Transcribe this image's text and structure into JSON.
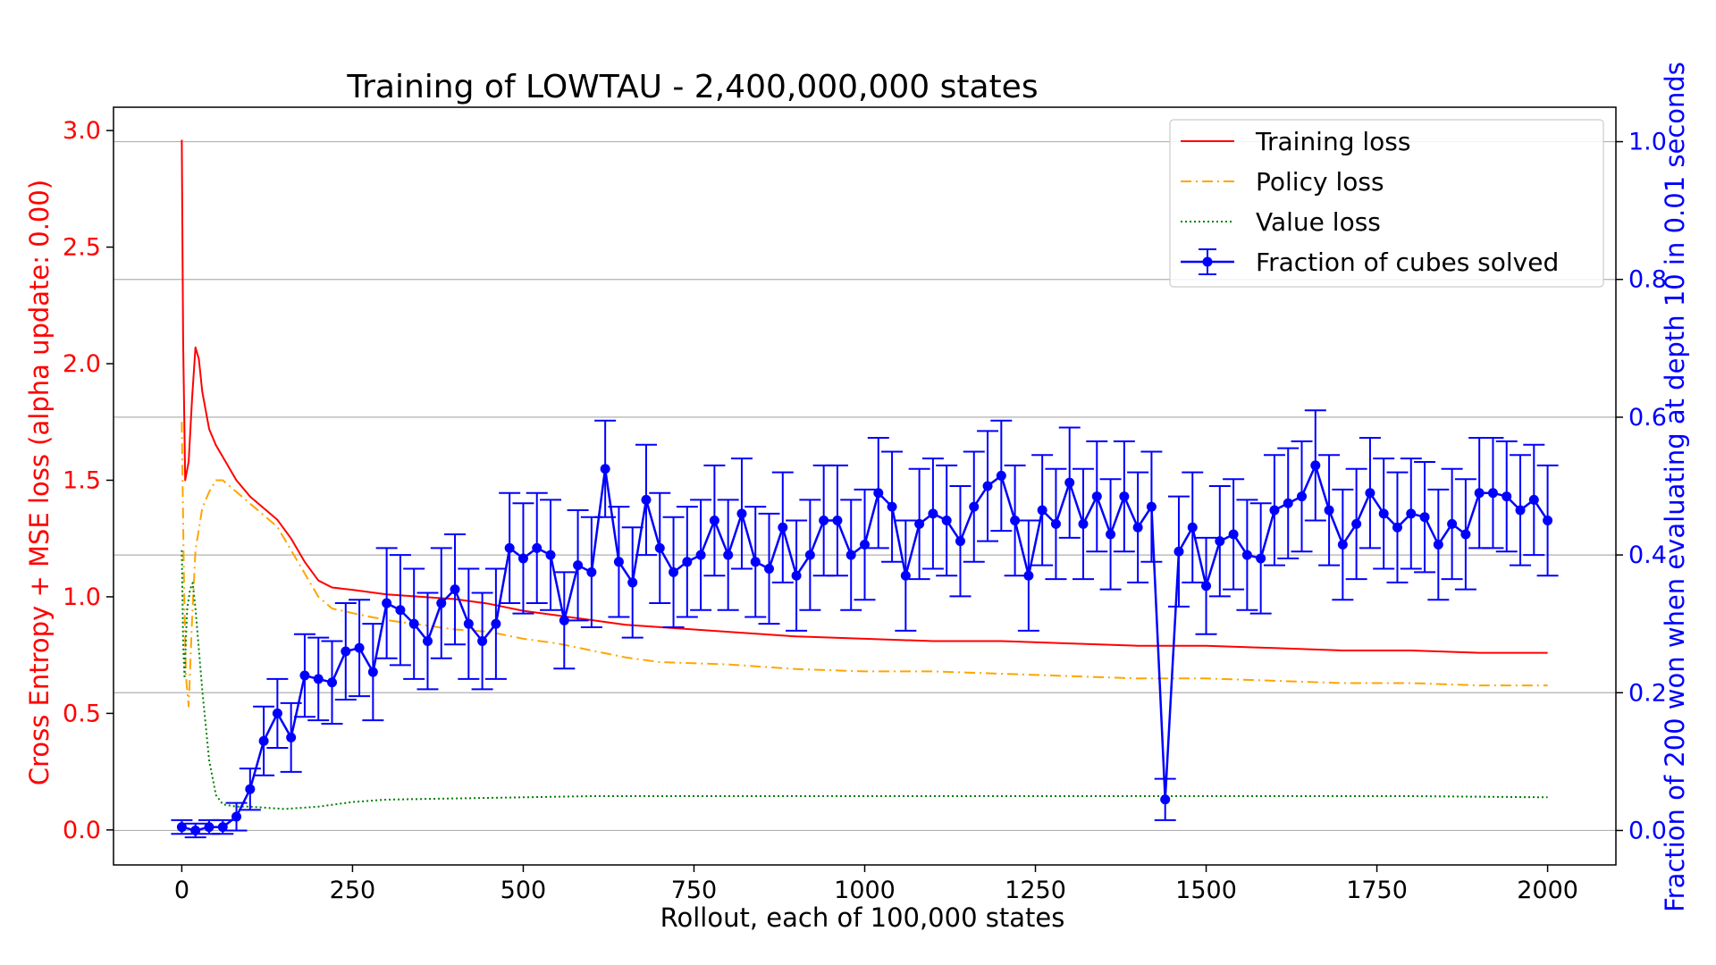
{
  "chart_data": {
    "type": "line",
    "title": "Training of LOWTAU - 2,400,000,000 states",
    "xlabel": "Rollout, each of 100,000 states",
    "ylabel_left": "Cross Entropy + MSE loss (alpha update: 0.00)",
    "ylabel_right": "Fraction of 200 won when evaluating at depth 10 in 0.01 seconds",
    "xlim": [
      -100,
      2100
    ],
    "ylim_left": [
      -0.15,
      3.1
    ],
    "ylim_right": [
      -0.05,
      1.05
    ],
    "xticks": [
      0,
      250,
      500,
      750,
      1000,
      1250,
      1500,
      1750,
      2000
    ],
    "xtick_labels": [
      "0",
      "250",
      "500",
      "750",
      "1000",
      "1250",
      "1500",
      "1750",
      "2000"
    ],
    "yticks_left": [
      0.0,
      0.5,
      1.0,
      1.5,
      2.0,
      2.5,
      3.0
    ],
    "ytick_labels_left": [
      "0.0",
      "0.5",
      "1.0",
      "1.5",
      "2.0",
      "2.5",
      "3.0"
    ],
    "yticks_right": [
      0.0,
      0.2,
      0.4,
      0.6,
      0.8,
      1.0
    ],
    "ytick_labels_right": [
      "0.0",
      "0.2",
      "0.4",
      "0.6",
      "0.8",
      "1.0"
    ],
    "grid": "horizontal, right axis",
    "legend_position": "top-right",
    "colors": {
      "training": "#ff0000",
      "policy": "#ffa500",
      "value": "#008000",
      "solved": "#0000ff",
      "left_axis": "#ff0000",
      "right_axis": "#0000ff",
      "grid": "#b0b0b0",
      "text": "#000000"
    },
    "series": [
      {
        "name": "Training loss",
        "axis": "left",
        "style": "solid",
        "x": [
          0,
          2,
          5,
          10,
          15,
          20,
          25,
          30,
          40,
          50,
          60,
          80,
          100,
          120,
          140,
          160,
          180,
          200,
          220,
          250,
          300,
          350,
          400,
          450,
          500,
          550,
          600,
          650,
          700,
          800,
          900,
          1000,
          1100,
          1200,
          1300,
          1400,
          1500,
          1600,
          1700,
          1800,
          1900,
          2000
        ],
        "y": [
          2.96,
          2.1,
          1.5,
          1.58,
          1.85,
          2.07,
          2.02,
          1.88,
          1.72,
          1.65,
          1.6,
          1.5,
          1.43,
          1.38,
          1.33,
          1.25,
          1.15,
          1.07,
          1.04,
          1.03,
          1.01,
          1.0,
          0.99,
          0.97,
          0.94,
          0.92,
          0.9,
          0.88,
          0.87,
          0.85,
          0.83,
          0.82,
          0.81,
          0.81,
          0.8,
          0.79,
          0.79,
          0.78,
          0.77,
          0.77,
          0.76,
          0.76
        ]
      },
      {
        "name": "Policy loss",
        "axis": "left",
        "style": "dashdot",
        "x": [
          0,
          3,
          6,
          10,
          15,
          20,
          30,
          40,
          50,
          60,
          80,
          100,
          120,
          140,
          160,
          180,
          200,
          220,
          250,
          300,
          350,
          400,
          450,
          500,
          550,
          600,
          650,
          700,
          800,
          900,
          1000,
          1100,
          1200,
          1300,
          1400,
          1500,
          1600,
          1700,
          1800,
          1900,
          2000
        ],
        "y": [
          1.75,
          1.1,
          0.66,
          0.53,
          0.9,
          1.2,
          1.38,
          1.45,
          1.5,
          1.5,
          1.45,
          1.4,
          1.35,
          1.3,
          1.2,
          1.1,
          1.0,
          0.95,
          0.93,
          0.9,
          0.88,
          0.86,
          0.85,
          0.82,
          0.8,
          0.77,
          0.74,
          0.72,
          0.71,
          0.69,
          0.68,
          0.68,
          0.67,
          0.66,
          0.65,
          0.65,
          0.64,
          0.63,
          0.63,
          0.62,
          0.62
        ]
      },
      {
        "name": "Value loss",
        "axis": "left",
        "style": "dotted",
        "x": [
          0,
          2,
          4,
          6,
          8,
          12,
          16,
          20,
          30,
          40,
          50,
          60,
          80,
          100,
          150,
          200,
          250,
          300,
          400,
          500,
          600,
          700,
          800,
          900,
          1000,
          1200,
          1400,
          1600,
          1800,
          2000
        ],
        "y": [
          1.2,
          0.8,
          0.65,
          0.82,
          0.95,
          1.03,
          1.06,
          0.95,
          0.6,
          0.3,
          0.15,
          0.11,
          0.1,
          0.1,
          0.09,
          0.1,
          0.12,
          0.13,
          0.135,
          0.14,
          0.145,
          0.145,
          0.145,
          0.145,
          0.145,
          0.145,
          0.145,
          0.145,
          0.145,
          0.14
        ]
      },
      {
        "name": "Fraction of cubes solved",
        "axis": "right",
        "style": "solid-marker-errorbar",
        "x": [
          0,
          20,
          40,
          60,
          80,
          100,
          120,
          140,
          160,
          180,
          200,
          220,
          240,
          260,
          280,
          300,
          320,
          340,
          360,
          380,
          400,
          420,
          440,
          460,
          480,
          500,
          520,
          540,
          560,
          580,
          600,
          620,
          640,
          660,
          680,
          700,
          720,
          740,
          760,
          780,
          800,
          820,
          840,
          860,
          880,
          900,
          920,
          940,
          960,
          980,
          1000,
          1020,
          1040,
          1060,
          1080,
          1100,
          1120,
          1140,
          1160,
          1180,
          1200,
          1220,
          1240,
          1260,
          1280,
          1300,
          1320,
          1340,
          1360,
          1380,
          1400,
          1420,
          1440,
          1460,
          1480,
          1500,
          1520,
          1540,
          1560,
          1580,
          1600,
          1620,
          1640,
          1660,
          1680,
          1700,
          1720,
          1740,
          1760,
          1780,
          1800,
          1820,
          1840,
          1860,
          1880,
          1900,
          1920,
          1940,
          1960,
          1980,
          2000
        ],
        "y": [
          0.005,
          0.0,
          0.005,
          0.005,
          0.02,
          0.06,
          0.13,
          0.17,
          0.135,
          0.225,
          0.22,
          0.215,
          0.26,
          0.265,
          0.23,
          0.33,
          0.32,
          0.3,
          0.275,
          0.33,
          0.35,
          0.3,
          0.275,
          0.3,
          0.41,
          0.395,
          0.41,
          0.4,
          0.305,
          0.385,
          0.375,
          0.525,
          0.39,
          0.36,
          0.48,
          0.41,
          0.375,
          0.39,
          0.4,
          0.45,
          0.4,
          0.46,
          0.39,
          0.38,
          0.44,
          0.37,
          0.4,
          0.45,
          0.45,
          0.4,
          0.415,
          0.49,
          0.47,
          0.37,
          0.445,
          0.46,
          0.45,
          0.42,
          0.47,
          0.5,
          0.515,
          0.45,
          0.37,
          0.465,
          0.445,
          0.505,
          0.445,
          0.485,
          0.43,
          0.485,
          0.44,
          0.47,
          0.045,
          0.405,
          0.44,
          0.355,
          0.42,
          0.43,
          0.4,
          0.395,
          0.465,
          0.475,
          0.485,
          0.53,
          0.465,
          0.415,
          0.445,
          0.49,
          0.46,
          0.44,
          0.46,
          0.455,
          0.415,
          0.445,
          0.43,
          0.49,
          0.49,
          0.485,
          0.465,
          0.48,
          0.45
        ],
        "yerr": [
          0.01,
          0.01,
          0.01,
          0.01,
          0.02,
          0.03,
          0.05,
          0.05,
          0.05,
          0.06,
          0.06,
          0.06,
          0.07,
          0.07,
          0.07,
          0.08,
          0.08,
          0.08,
          0.07,
          0.08,
          0.08,
          0.08,
          0.07,
          0.08,
          0.08,
          0.08,
          0.08,
          0.08,
          0.07,
          0.08,
          0.08,
          0.07,
          0.08,
          0.08,
          0.08,
          0.08,
          0.08,
          0.08,
          0.08,
          0.08,
          0.08,
          0.08,
          0.08,
          0.08,
          0.08,
          0.08,
          0.08,
          0.08,
          0.08,
          0.08,
          0.08,
          0.08,
          0.08,
          0.08,
          0.08,
          0.08,
          0.08,
          0.08,
          0.08,
          0.08,
          0.08,
          0.08,
          0.08,
          0.08,
          0.08,
          0.08,
          0.08,
          0.08,
          0.08,
          0.08,
          0.08,
          0.08,
          0.03,
          0.08,
          0.08,
          0.07,
          0.08,
          0.08,
          0.08,
          0.08,
          0.08,
          0.08,
          0.08,
          0.08,
          0.08,
          0.08,
          0.08,
          0.08,
          0.08,
          0.08,
          0.08,
          0.08,
          0.08,
          0.08,
          0.08,
          0.08,
          0.08,
          0.08,
          0.08,
          0.08,
          0.08
        ]
      }
    ]
  }
}
